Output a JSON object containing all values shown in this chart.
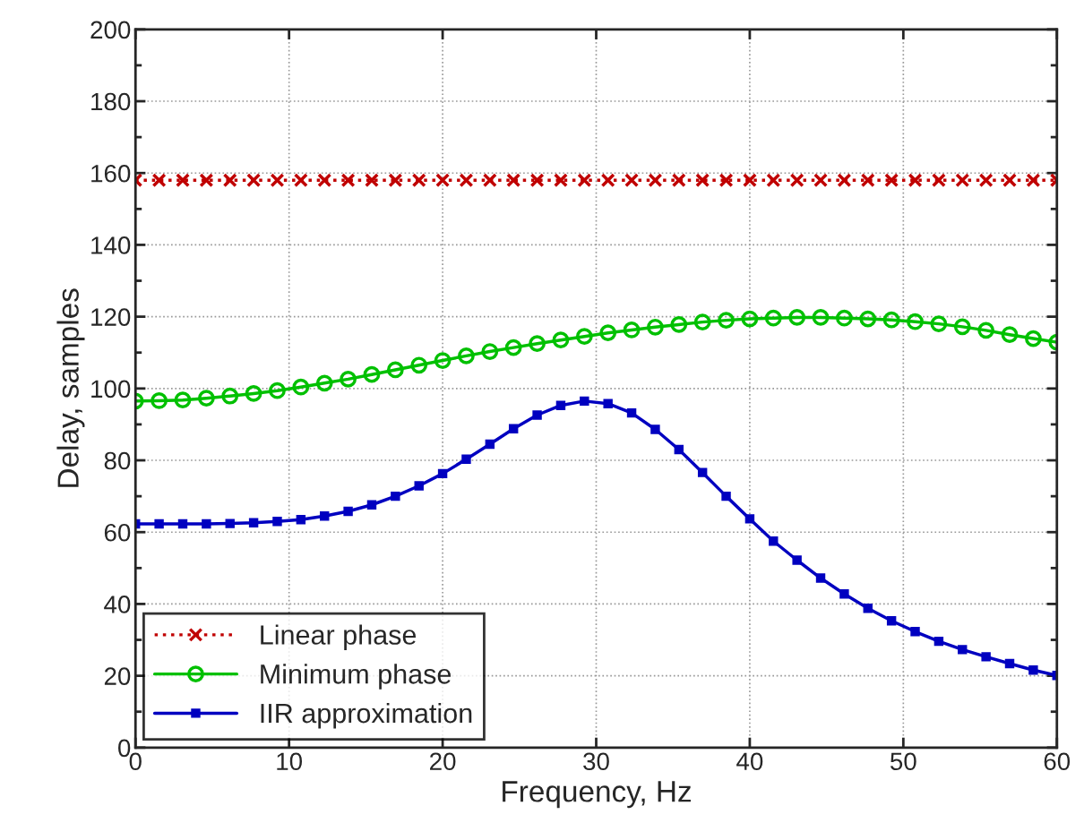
{
  "chart_data": {
    "type": "line",
    "xlabel": "Frequency, Hz",
    "ylabel": "Delay, samples",
    "x": [
      0,
      1.538,
      3.077,
      4.615,
      6.154,
      7.692,
      9.231,
      10.769,
      12.308,
      13.846,
      15.385,
      16.923,
      18.462,
      20,
      21.538,
      23.077,
      24.615,
      26.154,
      27.692,
      29.231,
      30.769,
      32.308,
      33.846,
      35.385,
      36.923,
      38.462,
      40,
      41.538,
      43.077,
      44.615,
      46.154,
      47.692,
      49.231,
      50.769,
      52.308,
      53.846,
      55.385,
      56.923,
      58.462,
      60
    ],
    "series": [
      {
        "name": "Linear phase",
        "color": "#c00000",
        "marker": "cross",
        "line_style": "dotted",
        "values": [
          158,
          158,
          158,
          158,
          158,
          158,
          158,
          158,
          158,
          158,
          158,
          158,
          158,
          158,
          158,
          158,
          158,
          158,
          158,
          158,
          158,
          158,
          158,
          158,
          158,
          158,
          158,
          158,
          158,
          158,
          158,
          158,
          158,
          158,
          158,
          158,
          158,
          158,
          158,
          158
        ]
      },
      {
        "name": "Minimum phase",
        "color": "#00c000",
        "marker": "circle",
        "line_style": "solid",
        "values": [
          96.5,
          96.6,
          96.8,
          97.3,
          97.9,
          98.6,
          99.4,
          100.4,
          101.5,
          102.6,
          103.9,
          105.2,
          106.5,
          107.8,
          109.1,
          110.3,
          111.4,
          112.5,
          113.5,
          114.5,
          115.5,
          116.3,
          117.1,
          117.8,
          118.5,
          119,
          119.4,
          119.6,
          119.8,
          119.8,
          119.6,
          119.4,
          119.1,
          118.6,
          118,
          117.2,
          116.2,
          115,
          113.9,
          112.9
        ]
      },
      {
        "name": "IIR approximation",
        "color": "#0000c0",
        "marker": "square",
        "line_style": "solid",
        "values": [
          62.3,
          62.3,
          62.3,
          62.3,
          62.4,
          62.6,
          63,
          63.5,
          64.5,
          65.8,
          67.6,
          70,
          72.9,
          76.3,
          80.3,
          84.5,
          88.8,
          92.6,
          95.3,
          96.5,
          95.8,
          93.2,
          88.6,
          83,
          76.6,
          70,
          63.7,
          57.5,
          52.2,
          47.2,
          42.8,
          38.8,
          35.3,
          32.3,
          29.6,
          27.3,
          25.3,
          23.4,
          21.6,
          20.1
        ]
      }
    ],
    "xlim": [
      0,
      60
    ],
    "xticks": [
      0,
      10,
      20,
      30,
      40,
      50,
      60
    ],
    "ylim": [
      0,
      200
    ],
    "yticks": [
      0,
      20,
      40,
      60,
      80,
      100,
      120,
      140,
      160,
      180,
      200
    ],
    "grid": true,
    "legend": "bottom left"
  }
}
